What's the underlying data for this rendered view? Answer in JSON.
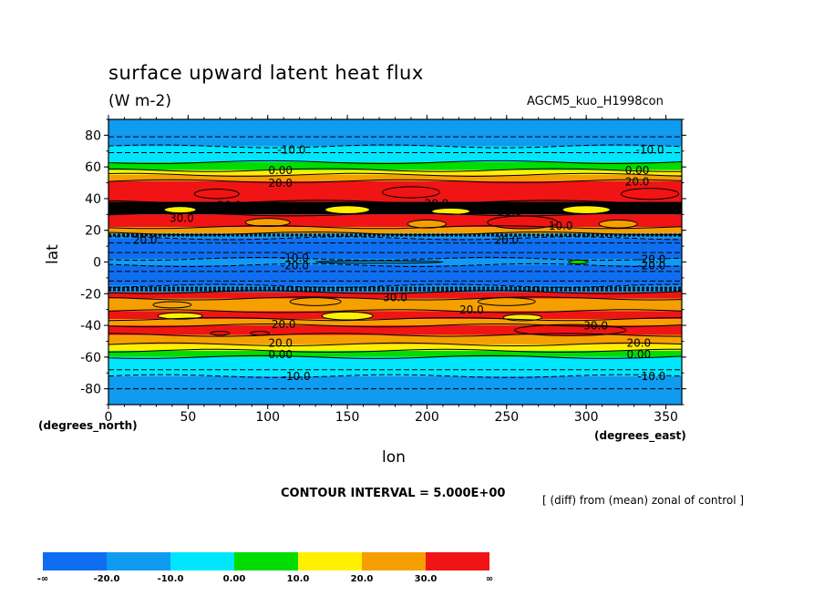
{
  "chart_data": {
    "type": "heatmap",
    "title": "surface upward latent heat flux",
    "subtitle": "(W m-2)",
    "run_label": "AGCM5_kuo_H1998con",
    "xlabel": "lon",
    "x_unit_label": "(degrees_east)",
    "ylabel": "lat",
    "y_unit_label": "(degrees_north)",
    "xlim": [
      0,
      360
    ],
    "ylim": [
      -90,
      90
    ],
    "x_ticks": [
      "0",
      "50",
      "100",
      "150",
      "200",
      "250",
      "300",
      "350"
    ],
    "y_ticks": [
      "80",
      "60",
      "40",
      "20",
      "0",
      "-20",
      "-40",
      "-60",
      "-80"
    ],
    "contour_interval_text": "CONTOUR INTERVAL = 5.000E+00",
    "note": "[ (diff) from (mean) zonal of control ]",
    "contour_labels": [
      {
        "text": "-10.0",
        "lon": 115,
        "lat": 71
      },
      {
        "text": "-10.0",
        "lon": 340,
        "lat": 71
      },
      {
        "text": "0.00",
        "lon": 108,
        "lat": 58
      },
      {
        "text": "0.00",
        "lon": 332,
        "lat": 58
      },
      {
        "text": "20.0",
        "lon": 108,
        "lat": 50
      },
      {
        "text": "20.0",
        "lon": 332,
        "lat": 51
      },
      {
        "text": "20.0",
        "lon": 76,
        "lat": 36
      },
      {
        "text": "30.0",
        "lon": 46,
        "lat": 28
      },
      {
        "text": "20.0",
        "lon": 206,
        "lat": 37
      },
      {
        "text": "20.0",
        "lon": 252,
        "lat": 32
      },
      {
        "text": "10.0",
        "lon": 284,
        "lat": 23
      },
      {
        "text": "20.0",
        "lon": 23,
        "lat": 14
      },
      {
        "text": "20.0",
        "lon": 250,
        "lat": 14
      },
      {
        "text": "-10.0",
        "lon": 117,
        "lat": 3
      },
      {
        "text": "-20.0",
        "lon": 117,
        "lat": -2
      },
      {
        "text": "-20.0",
        "lon": 341,
        "lat": 2
      },
      {
        "text": "-20.0",
        "lon": 341,
        "lat": -2
      },
      {
        "text": "30.0",
        "lon": 180,
        "lat": -22
      },
      {
        "text": "20.0",
        "lon": 228,
        "lat": -30
      },
      {
        "text": "20.0",
        "lon": 110,
        "lat": -39
      },
      {
        "text": "30.0",
        "lon": 306,
        "lat": -40
      },
      {
        "text": "20.0",
        "lon": 108,
        "lat": -51
      },
      {
        "text": "20.0",
        "lon": 333,
        "lat": -51
      },
      {
        "text": "0.00",
        "lon": 108,
        "lat": -58
      },
      {
        "text": "0.00",
        "lon": 333,
        "lat": -58
      },
      {
        "text": "-10.0",
        "lon": 118,
        "lat": -72
      },
      {
        "text": "-10.0",
        "lon": 341,
        "lat": -72
      }
    ],
    "legend": {
      "labels": [
        "-∞",
        "-20.0",
        "-10.0",
        "0.00",
        "10.0",
        "20.0",
        "30.0",
        "∞"
      ],
      "colors": [
        "#0f6ef0",
        "#0f9bf0",
        "#00e6ff",
        "#00dc00",
        "#fff000",
        "#f5a000",
        "#f01414"
      ]
    },
    "band_boundaries_lat": [
      90,
      73,
      63,
      58,
      55,
      51,
      38,
      30,
      22,
      18,
      15,
      2,
      -2,
      -15,
      -19,
      -23,
      -31,
      -36,
      -40,
      -46,
      -52,
      -56,
      -60,
      -72,
      -90
    ],
    "band_levels": [
      1,
      2,
      3,
      4,
      5,
      6,
      7,
      6,
      5,
      1,
      0,
      1,
      0,
      1,
      6,
      5,
      6,
      5,
      6,
      5,
      4,
      3,
      2,
      1
    ]
  }
}
